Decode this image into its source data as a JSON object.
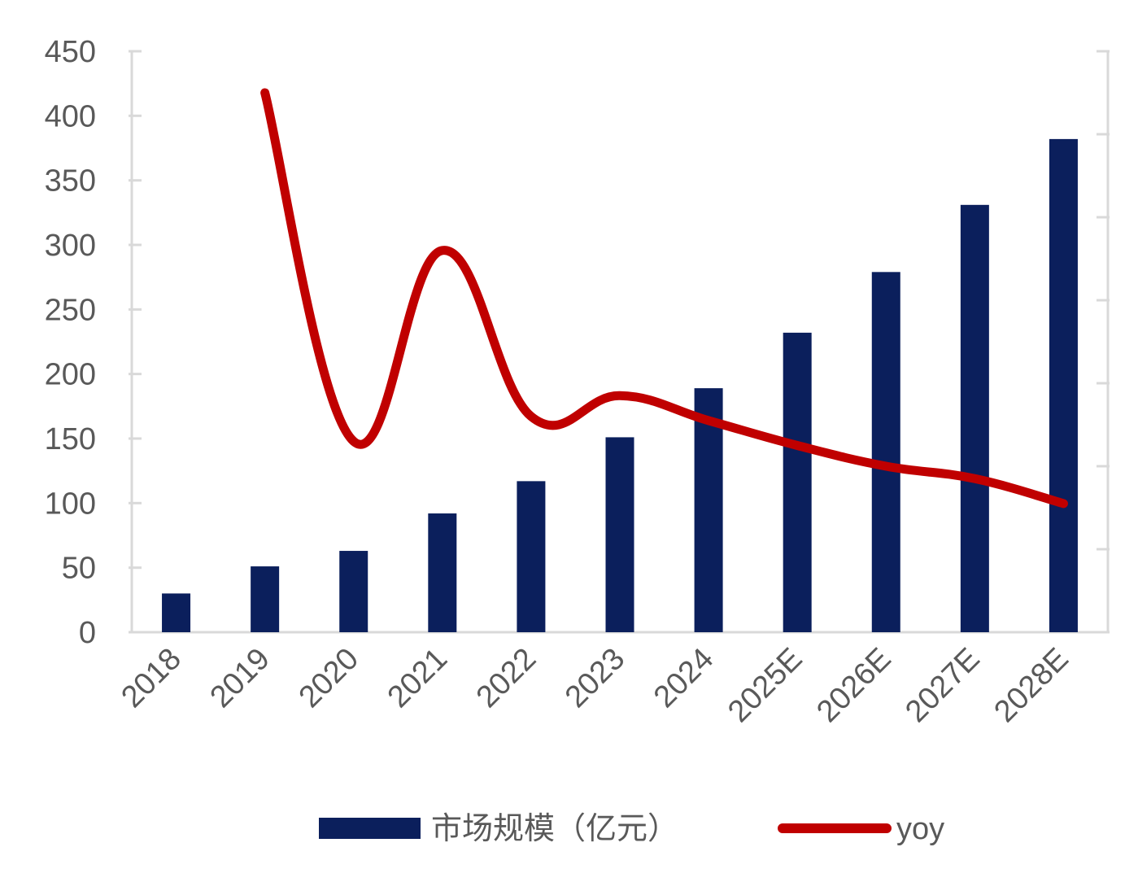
{
  "chart_data": {
    "type": "bar+line",
    "title": "",
    "categories": [
      "2018",
      "2019",
      "2020",
      "2021",
      "2022",
      "2023",
      "2024",
      "2025E",
      "2026E",
      "2027E",
      "2028E"
    ],
    "series": [
      {
        "name": "市场规模（亿元）",
        "type": "bar",
        "axis": "left",
        "color": "#0b1f5c",
        "values": [
          30,
          51,
          63,
          92,
          117,
          151,
          189,
          232,
          279,
          331,
          382
        ]
      },
      {
        "name": "yoy",
        "type": "line",
        "axis": "right",
        "color": "#c00000",
        "values": [
          null,
          0.65,
          0.23,
          0.46,
          0.26,
          0.285,
          0.255,
          0.225,
          0.2,
          0.185,
          0.155
        ]
      }
    ],
    "yaxis_left": {
      "ylim": [
        0,
        450
      ],
      "ticks": [
        "0",
        "50",
        "100",
        "150",
        "200",
        "250",
        "300",
        "350",
        "400",
        "450"
      ]
    },
    "yaxis_right": {
      "ylim": [
        0,
        0.7
      ],
      "tick_labels_shown": false
    },
    "xlabel": "",
    "ylabel": "",
    "grid": false,
    "legend": {
      "placement": "bottom",
      "entries": [
        "市场规模（亿元）",
        "yoy"
      ]
    }
  }
}
